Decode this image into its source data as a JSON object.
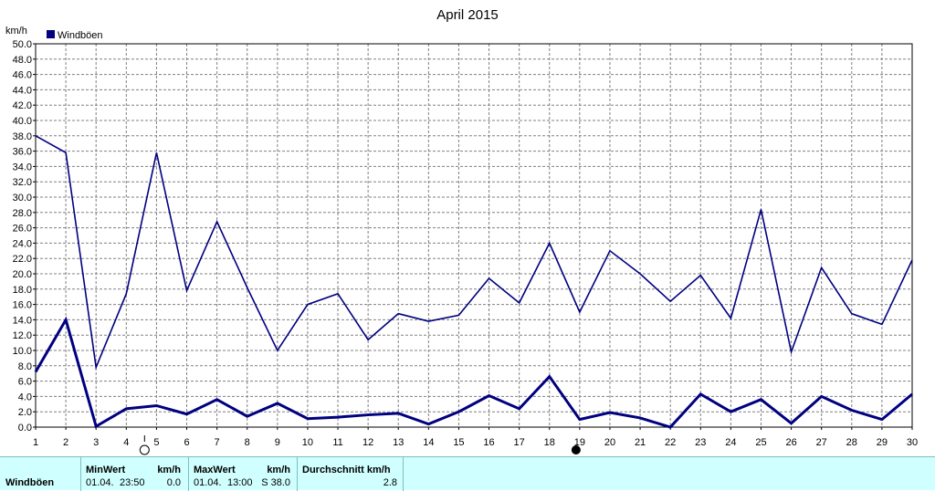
{
  "chart_data": {
    "type": "line",
    "title": "April 2015",
    "ylabel": "km/h",
    "ylim": [
      0,
      50
    ],
    "ytick_step": 2,
    "grid": true,
    "legend_position": "top-left",
    "categories": [
      "1",
      "2",
      "3",
      "4",
      "5",
      "6",
      "7",
      "8",
      "9",
      "10",
      "11",
      "12",
      "13",
      "14",
      "15",
      "16",
      "17",
      "18",
      "19",
      "20",
      "21",
      "22",
      "23",
      "24",
      "25",
      "26",
      "27",
      "28",
      "29",
      "30"
    ],
    "series": [
      {
        "name": "Windböen",
        "color": "#000080",
        "role": "max",
        "values": [
          38.0,
          35.8,
          7.8,
          17.4,
          35.8,
          17.8,
          26.8,
          18.2,
          10.0,
          16.0,
          17.4,
          11.4,
          14.8,
          13.8,
          14.6,
          19.4,
          16.2,
          24.0,
          15.0,
          23.0,
          20.0,
          16.4,
          19.8,
          14.2,
          28.4,
          9.8,
          20.8,
          14.8,
          13.4,
          21.8
        ]
      },
      {
        "name": "",
        "color": "#000080",
        "role": "average",
        "values": [
          7.2,
          14.0,
          0.1,
          2.4,
          2.8,
          1.7,
          3.6,
          1.4,
          3.1,
          1.1,
          1.3,
          1.6,
          1.8,
          0.4,
          2.0,
          4.1,
          2.4,
          6.6,
          1.0,
          1.9,
          1.2,
          0.0,
          4.3,
          2.0,
          3.6,
          0.5,
          4.0,
          2.2,
          1.0,
          4.3
        ]
      }
    ],
    "moon_markers": [
      {
        "day": "4",
        "phase": "full-moon"
      },
      {
        "day": "19",
        "phase": "new-moon"
      }
    ]
  },
  "stats": {
    "row_label": "Windböen",
    "min_header": "MinWert",
    "min_unit_header": "km/h",
    "min_date": "01.04.",
    "min_time": "23:50",
    "min_value": "0.0",
    "max_header": "MaxWert",
    "max_unit_header": "km/h",
    "max_date": "01.04.",
    "max_time": "13:00",
    "max_value": "S 38.0",
    "avg_header": "Durchschnitt km/h",
    "avg_value": "2.8"
  }
}
